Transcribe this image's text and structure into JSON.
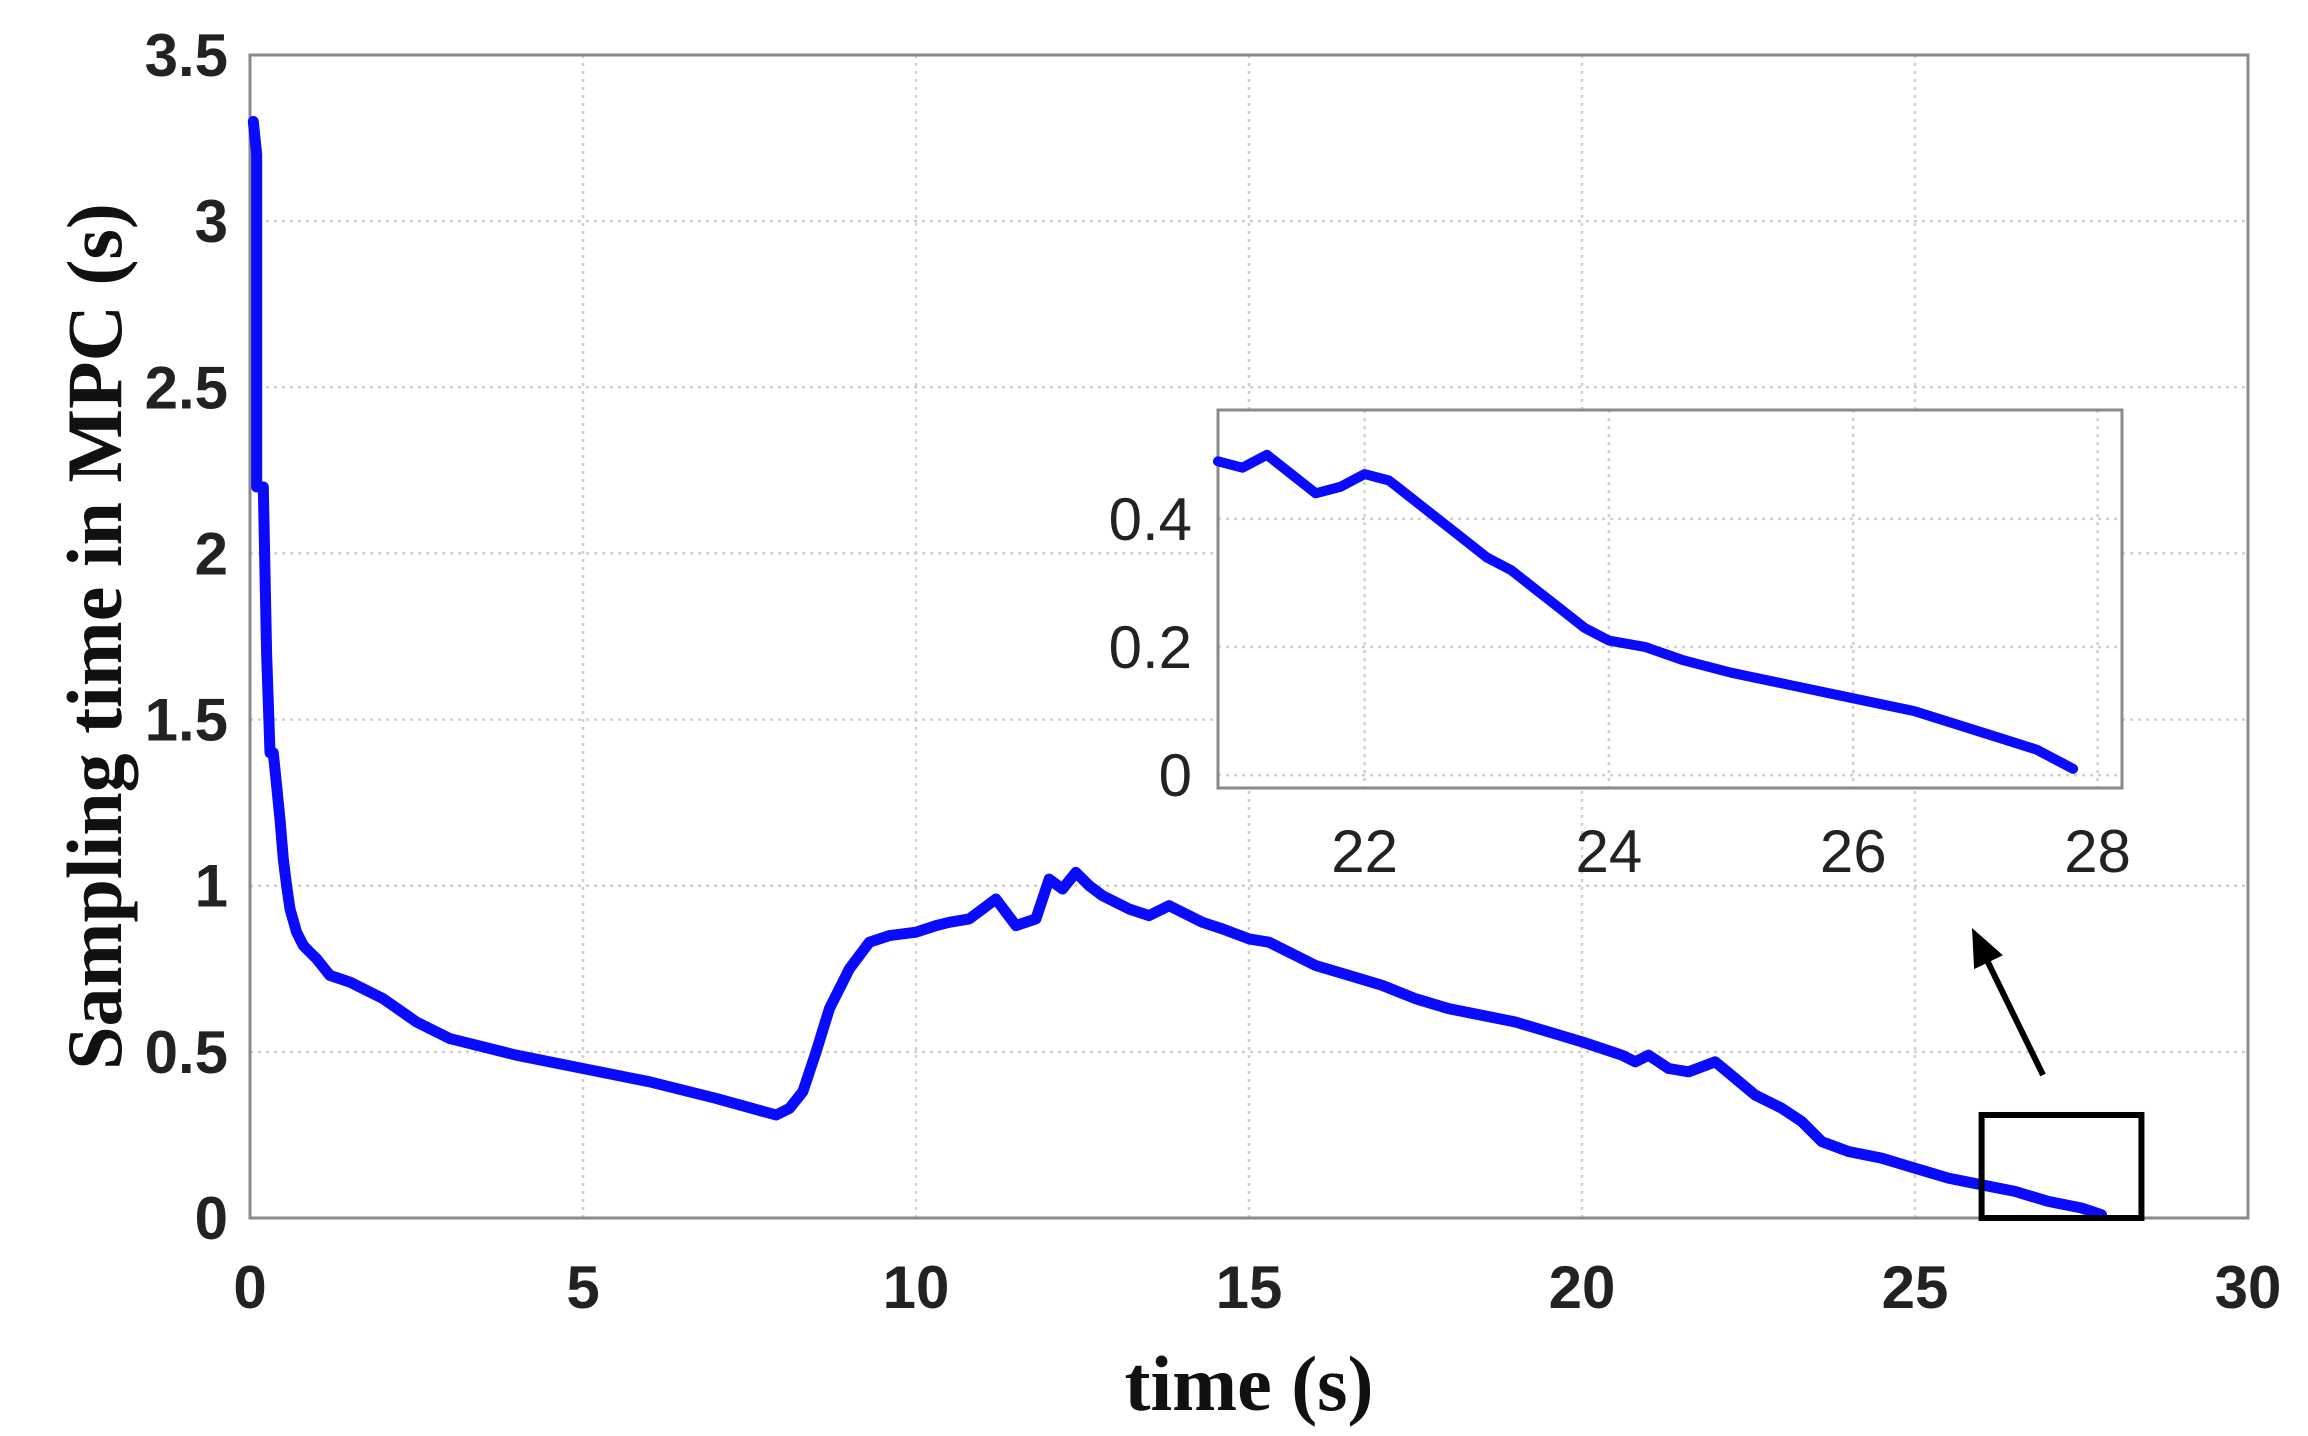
{
  "chart_data": {
    "type": "line",
    "title": "",
    "xlabel": "time (s)",
    "ylabel": "Sampling time in MPC (s)",
    "xlim": [
      0,
      30
    ],
    "ylim": [
      0,
      3.5
    ],
    "xticks": [
      "0",
      "5",
      "10",
      "15",
      "20",
      "25",
      "30"
    ],
    "yticks": [
      "0",
      "0.5",
      "1",
      "1.5",
      "2",
      "2.5",
      "3",
      "3.5"
    ],
    "grid": true,
    "line_color": "#0a0aff",
    "series": [
      {
        "x": [
          0.05,
          0.1,
          0.1,
          0.2,
          0.25,
          0.3,
          0.35,
          0.45,
          0.5,
          0.55,
          0.6,
          0.7,
          0.8,
          0.9,
          1.0,
          1.2,
          1.5,
          2.0,
          2.5,
          3.0,
          4.0,
          5.0,
          6.0,
          7.0,
          7.9,
          8.1,
          8.3,
          8.5,
          8.7,
          9.0,
          9.3,
          9.6,
          10.0,
          10.3,
          10.5,
          10.8,
          11.0,
          11.2,
          11.5,
          11.8,
          12.0,
          12.2,
          12.4,
          12.6,
          12.8,
          13.0,
          13.2,
          13.5,
          13.8,
          14.0,
          14.3,
          14.6,
          15.0,
          15.3,
          15.6,
          16.0,
          16.5,
          17.0,
          17.5,
          18.0,
          18.5,
          19.0,
          19.5,
          20.0,
          20.3,
          20.6,
          20.8,
          21.0,
          21.3,
          21.6,
          22.0,
          22.3,
          22.6,
          23.0,
          23.3,
          23.6,
          24.0,
          24.5,
          25.0,
          25.5,
          26.0,
          26.5,
          27.0,
          27.5,
          27.8
        ],
        "y": [
          3.3,
          3.2,
          2.2,
          2.2,
          1.7,
          1.4,
          1.4,
          1.2,
          1.08,
          1.0,
          0.93,
          0.86,
          0.82,
          0.8,
          0.78,
          0.73,
          0.71,
          0.66,
          0.59,
          0.54,
          0.49,
          0.45,
          0.41,
          0.36,
          0.31,
          0.33,
          0.38,
          0.5,
          0.63,
          0.75,
          0.83,
          0.85,
          0.86,
          0.88,
          0.89,
          0.9,
          0.93,
          0.96,
          0.88,
          0.9,
          1.02,
          0.99,
          1.04,
          1.0,
          0.97,
          0.95,
          0.93,
          0.91,
          0.94,
          0.92,
          0.89,
          0.87,
          0.84,
          0.83,
          0.8,
          0.76,
          0.73,
          0.7,
          0.66,
          0.63,
          0.61,
          0.59,
          0.56,
          0.53,
          0.51,
          0.49,
          0.47,
          0.49,
          0.45,
          0.44,
          0.47,
          0.42,
          0.37,
          0.33,
          0.29,
          0.23,
          0.2,
          0.18,
          0.15,
          0.12,
          0.1,
          0.08,
          0.05,
          0.03,
          0.01
        ]
      }
    ],
    "inset": {
      "type": "line",
      "xlim": [
        20.8,
        28.2
      ],
      "ylim": [
        -0.02,
        0.57
      ],
      "xticks": [
        "22",
        "24",
        "26",
        "28"
      ],
      "yticks": [
        "0",
        "0.2",
        "0.4"
      ],
      "series": [
        {
          "x": [
            20.8,
            21.0,
            21.2,
            21.4,
            21.6,
            21.8,
            22.0,
            22.2,
            22.4,
            22.6,
            22.8,
            23.0,
            23.2,
            23.4,
            23.6,
            23.8,
            24.0,
            24.3,
            24.6,
            25.0,
            25.5,
            26.0,
            26.5,
            27.0,
            27.5,
            27.8
          ],
          "y": [
            0.49,
            0.48,
            0.5,
            0.47,
            0.44,
            0.45,
            0.47,
            0.46,
            0.43,
            0.4,
            0.37,
            0.34,
            0.32,
            0.29,
            0.26,
            0.23,
            0.21,
            0.2,
            0.18,
            0.16,
            0.14,
            0.12,
            0.1,
            0.07,
            0.04,
            0.01
          ]
        }
      ]
    }
  },
  "annotations": {
    "zoom_box_x": [
      26.0,
      28.4
    ],
    "zoom_box_y": [
      0.0,
      0.31
    ]
  }
}
